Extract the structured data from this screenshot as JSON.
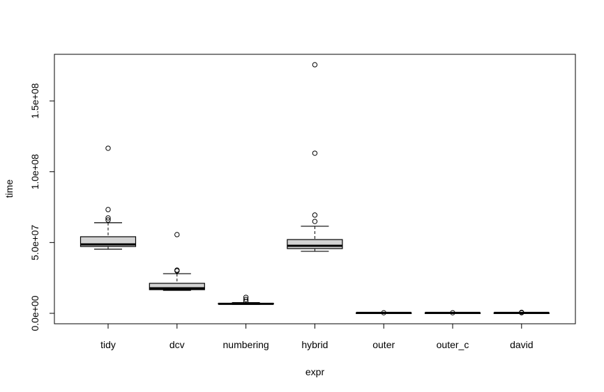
{
  "chart_data": {
    "type": "boxplot",
    "title": "",
    "xlabel": "expr",
    "ylabel": "time",
    "ylim": [
      -7500000,
      182000000
    ],
    "yticks": [
      0,
      50000000,
      100000000,
      150000000
    ],
    "ytick_labels": [
      "0.0e+00",
      "5.0e+07",
      "1.0e+08",
      "1.5e+08"
    ],
    "categories": [
      "tidy",
      "dcv",
      "numbering",
      "hybrid",
      "outer",
      "outer_c",
      "david"
    ],
    "box_fill": "#d3d3d3",
    "line_color": "#000000",
    "boxes": [
      {
        "name": "tidy",
        "whisker_low": 45300000,
        "q1": 47200000,
        "median": 48700000,
        "q3": 54100000,
        "whisker_high": 64000000,
        "outliers": [
          65900000,
          67400000,
          73300000,
          116600000
        ]
      },
      {
        "name": "dcv",
        "whisker_low": 16200000,
        "q1": 16700000,
        "median": 17700000,
        "q3": 21200000,
        "whisker_high": 28000000,
        "outliers": [
          30000000,
          30500000,
          55600000
        ]
      },
      {
        "name": "numbering",
        "whisker_low": 6300000,
        "q1": 6500000,
        "median": 6700000,
        "q3": 7100000,
        "whisker_high": 7600000,
        "outliers": [
          8400000,
          9800000,
          11300000
        ]
      },
      {
        "name": "hybrid",
        "whisker_low": 43800000,
        "q1": 45700000,
        "median": 47700000,
        "q3": 52100000,
        "whisker_high": 61500000,
        "outliers": [
          64900000,
          69400000,
          113100000,
          175600000
        ]
      },
      {
        "name": "outer",
        "whisker_low": 150000,
        "q1": 250000,
        "median": 300000,
        "q3": 350000,
        "whisker_high": 450000,
        "outliers": [
          400000
        ]
      },
      {
        "name": "outer_c",
        "whisker_low": 150000,
        "q1": 250000,
        "median": 300000,
        "q3": 350000,
        "whisker_high": 450000,
        "outliers": [
          400000
        ]
      },
      {
        "name": "david",
        "whisker_low": 150000,
        "q1": 250000,
        "median": 300000,
        "q3": 350000,
        "whisker_high": 450000,
        "outliers": [
          400000,
          700000
        ]
      }
    ]
  }
}
